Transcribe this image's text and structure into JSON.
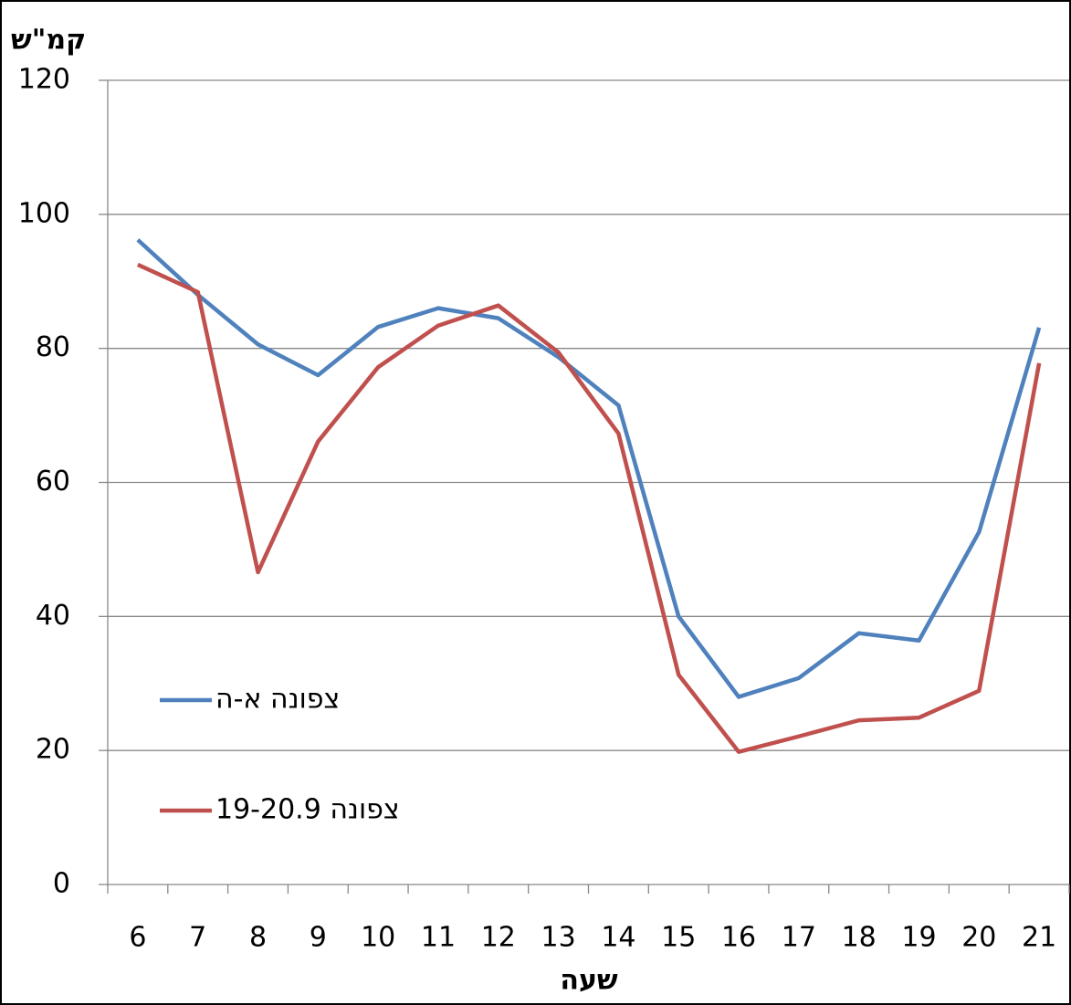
{
  "chart_data": {
    "type": "line",
    "y_label": "קמ\"ש",
    "x_label": "שעה",
    "categories": [
      "6",
      "7",
      "8",
      "9",
      "10",
      "11",
      "12",
      "13",
      "14",
      "15",
      "16",
      "17",
      "18",
      "19",
      "20",
      "21"
    ],
    "series": [
      {
        "name": "צפונה א-ה",
        "color": "#4f81bd",
        "values": [
          96.2,
          88,
          80.6,
          76,
          83.2,
          86,
          84.5,
          78.7,
          71.5,
          40,
          28,
          30.8,
          37.5,
          36.4,
          52.6,
          83.1
        ]
      },
      {
        "name": "צפונה 19-20.9",
        "color": "#c0504d",
        "values": [
          92.5,
          88.4,
          46.6,
          66.1,
          77.2,
          83.4,
          86.4,
          79.4,
          67.3,
          31.3,
          19.8,
          22.1,
          24.5,
          24.9,
          28.9,
          77.8
        ]
      }
    ],
    "ylim": [
      0,
      120
    ],
    "yticks": [
      0,
      20,
      40,
      60,
      80,
      100,
      120
    ],
    "grid": true
  }
}
